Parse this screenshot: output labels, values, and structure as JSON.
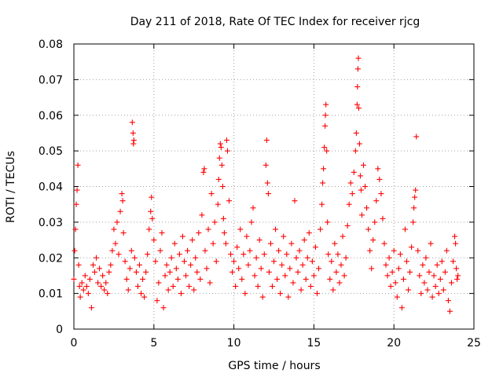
{
  "chart_data": {
    "type": "scatter",
    "title": "Day 211 of 2018, Rate Of TEC Index for receiver rjcg",
    "xlabel": "GPS time / hours",
    "ylabel": "ROTI / TECUs",
    "xlim": [
      0,
      25
    ],
    "ylim": [
      0,
      0.08
    ],
    "xticks": [
      0,
      5,
      10,
      15,
      20,
      25
    ],
    "xtick_labels": [
      "0",
      "5",
      "10",
      "15",
      "20",
      "25"
    ],
    "yticks": [
      0,
      0.01,
      0.02,
      0.03,
      0.04,
      0.05,
      0.06,
      0.07,
      0.08
    ],
    "ytick_labels": [
      "0",
      "0.01",
      "0.02",
      "0.03",
      "0.04",
      "0.05",
      "0.06",
      "0.07",
      "0.08"
    ],
    "grid": true,
    "marker": "+",
    "color": "#ff0000",
    "series": [
      {
        "name": "ROTI",
        "points": [
          [
            0.0,
            0.014
          ],
          [
            0.05,
            0.022
          ],
          [
            0.1,
            0.028
          ],
          [
            0.15,
            0.035
          ],
          [
            0.2,
            0.039
          ],
          [
            0.25,
            0.046
          ],
          [
            0.3,
            0.018
          ],
          [
            0.35,
            0.012
          ],
          [
            0.4,
            0.009
          ],
          [
            0.5,
            0.013
          ],
          [
            0.6,
            0.011
          ],
          [
            0.7,
            0.015
          ],
          [
            0.8,
            0.012
          ],
          [
            0.9,
            0.01
          ],
          [
            1.0,
            0.014
          ],
          [
            1.1,
            0.006
          ],
          [
            1.2,
            0.018
          ],
          [
            1.3,
            0.016
          ],
          [
            1.4,
            0.02
          ],
          [
            1.5,
            0.013
          ],
          [
            1.6,
            0.017
          ],
          [
            1.7,
            0.012
          ],
          [
            1.8,
            0.015
          ],
          [
            1.9,
            0.011
          ],
          [
            2.0,
            0.013
          ],
          [
            2.1,
            0.01
          ],
          [
            2.2,
            0.016
          ],
          [
            2.3,
            0.018
          ],
          [
            2.4,
            0.022
          ],
          [
            2.5,
            0.028
          ],
          [
            2.6,
            0.024
          ],
          [
            2.7,
            0.03
          ],
          [
            2.8,
            0.021
          ],
          [
            2.9,
            0.033
          ],
          [
            3.0,
            0.038
          ],
          [
            3.05,
            0.036
          ],
          [
            3.1,
            0.027
          ],
          [
            3.2,
            0.019
          ],
          [
            3.3,
            0.014
          ],
          [
            3.4,
            0.011
          ],
          [
            3.5,
            0.017
          ],
          [
            3.6,
            0.022
          ],
          [
            3.65,
            0.058
          ],
          [
            3.7,
            0.055
          ],
          [
            3.72,
            0.052
          ],
          [
            3.75,
            0.053
          ],
          [
            3.8,
            0.02
          ],
          [
            3.9,
            0.016
          ],
          [
            4.0,
            0.012
          ],
          [
            4.1,
            0.018
          ],
          [
            4.2,
            0.01
          ],
          [
            4.3,
            0.014
          ],
          [
            4.4,
            0.009
          ],
          [
            4.5,
            0.016
          ],
          [
            4.6,
            0.021
          ],
          [
            4.7,
            0.028
          ],
          [
            4.8,
            0.033
          ],
          [
            4.85,
            0.037
          ],
          [
            4.9,
            0.031
          ],
          [
            5.0,
            0.025
          ],
          [
            5.1,
            0.019
          ],
          [
            5.2,
            0.008
          ],
          [
            5.3,
            0.013
          ],
          [
            5.4,
            0.022
          ],
          [
            5.5,
            0.027
          ],
          [
            5.6,
            0.006
          ],
          [
            5.7,
            0.015
          ],
          [
            5.8,
            0.018
          ],
          [
            5.9,
            0.011
          ],
          [
            6.0,
            0.016
          ],
          [
            6.1,
            0.02
          ],
          [
            6.2,
            0.012
          ],
          [
            6.3,
            0.024
          ],
          [
            6.4,
            0.017
          ],
          [
            6.5,
            0.014
          ],
          [
            6.6,
            0.021
          ],
          [
            6.7,
            0.01
          ],
          [
            6.8,
            0.026
          ],
          [
            6.9,
            0.019
          ],
          [
            7.0,
            0.015
          ],
          [
            7.1,
            0.022
          ],
          [
            7.2,
            0.012
          ],
          [
            7.3,
            0.018
          ],
          [
            7.4,
            0.025
          ],
          [
            7.5,
            0.011
          ],
          [
            7.6,
            0.02
          ],
          [
            7.7,
            0.016
          ],
          [
            7.8,
            0.027
          ],
          [
            7.9,
            0.014
          ],
          [
            8.0,
            0.032
          ],
          [
            8.1,
            0.044
          ],
          [
            8.15,
            0.045
          ],
          [
            8.2,
            0.022
          ],
          [
            8.3,
            0.017
          ],
          [
            8.4,
            0.028
          ],
          [
            8.5,
            0.013
          ],
          [
            8.6,
            0.038
          ],
          [
            8.7,
            0.024
          ],
          [
            8.8,
            0.03
          ],
          [
            8.9,
            0.019
          ],
          [
            9.0,
            0.035
          ],
          [
            9.05,
            0.042
          ],
          [
            9.1,
            0.048
          ],
          [
            9.15,
            0.052
          ],
          [
            9.2,
            0.051
          ],
          [
            9.25,
            0.046
          ],
          [
            9.3,
            0.04
          ],
          [
            9.35,
            0.031
          ],
          [
            9.4,
            0.027
          ],
          [
            9.5,
            0.024
          ],
          [
            9.55,
            0.053
          ],
          [
            9.6,
            0.05
          ],
          [
            9.7,
            0.036
          ],
          [
            9.8,
            0.021
          ],
          [
            9.9,
            0.016
          ],
          [
            10.0,
            0.019
          ],
          [
            10.1,
            0.012
          ],
          [
            10.2,
            0.023
          ],
          [
            10.3,
            0.017
          ],
          [
            10.4,
            0.028
          ],
          [
            10.5,
            0.014
          ],
          [
            10.6,
            0.021
          ],
          [
            10.7,
            0.01
          ],
          [
            10.8,
            0.026
          ],
          [
            10.9,
            0.018
          ],
          [
            11.0,
            0.022
          ],
          [
            11.1,
            0.03
          ],
          [
            11.2,
            0.034
          ],
          [
            11.3,
            0.015
          ],
          [
            11.4,
            0.02
          ],
          [
            11.5,
            0.012
          ],
          [
            11.6,
            0.025
          ],
          [
            11.7,
            0.017
          ],
          [
            11.8,
            0.009
          ],
          [
            11.9,
            0.021
          ],
          [
            12.0,
            0.046
          ],
          [
            12.05,
            0.053
          ],
          [
            12.1,
            0.041
          ],
          [
            12.15,
            0.038
          ],
          [
            12.2,
            0.016
          ],
          [
            12.3,
            0.024
          ],
          [
            12.4,
            0.012
          ],
          [
            12.5,
            0.019
          ],
          [
            12.6,
            0.028
          ],
          [
            12.7,
            0.014
          ],
          [
            12.8,
            0.022
          ],
          [
            12.9,
            0.01
          ],
          [
            13.0,
            0.018
          ],
          [
            13.1,
            0.026
          ],
          [
            13.2,
            0.015
          ],
          [
            13.3,
            0.021
          ],
          [
            13.4,
            0.009
          ],
          [
            13.5,
            0.017
          ],
          [
            13.6,
            0.024
          ],
          [
            13.7,
            0.013
          ],
          [
            13.8,
            0.036
          ],
          [
            13.9,
            0.02
          ],
          [
            14.0,
            0.016
          ],
          [
            14.1,
            0.022
          ],
          [
            14.2,
            0.011
          ],
          [
            14.3,
            0.018
          ],
          [
            14.4,
            0.025
          ],
          [
            14.5,
            0.014
          ],
          [
            14.6,
            0.02
          ],
          [
            14.7,
            0.027
          ],
          [
            14.8,
            0.012
          ],
          [
            14.9,
            0.019
          ],
          [
            15.0,
            0.015
          ],
          [
            15.1,
            0.023
          ],
          [
            15.2,
            0.01
          ],
          [
            15.3,
            0.017
          ],
          [
            15.4,
            0.028
          ],
          [
            15.5,
            0.035
          ],
          [
            15.55,
            0.041
          ],
          [
            15.6,
            0.045
          ],
          [
            15.65,
            0.051
          ],
          [
            15.7,
            0.057
          ],
          [
            15.72,
            0.06
          ],
          [
            15.75,
            0.063
          ],
          [
            15.8,
            0.05
          ],
          [
            15.85,
            0.03
          ],
          [
            15.9,
            0.021
          ],
          [
            16.0,
            0.014
          ],
          [
            16.1,
            0.019
          ],
          [
            16.2,
            0.011
          ],
          [
            16.3,
            0.024
          ],
          [
            16.4,
            0.016
          ],
          [
            16.5,
            0.021
          ],
          [
            16.6,
            0.013
          ],
          [
            16.7,
            0.018
          ],
          [
            16.8,
            0.026
          ],
          [
            16.9,
            0.015
          ],
          [
            17.0,
            0.02
          ],
          [
            17.1,
            0.029
          ],
          [
            17.2,
            0.035
          ],
          [
            17.3,
            0.041
          ],
          [
            17.4,
            0.038
          ],
          [
            17.5,
            0.044
          ],
          [
            17.6,
            0.05
          ],
          [
            17.65,
            0.055
          ],
          [
            17.7,
            0.063
          ],
          [
            17.72,
            0.068
          ],
          [
            17.75,
            0.073
          ],
          [
            17.78,
            0.076
          ],
          [
            17.8,
            0.062
          ],
          [
            17.85,
            0.052
          ],
          [
            17.9,
            0.043
          ],
          [
            17.95,
            0.039
          ],
          [
            18.0,
            0.032
          ],
          [
            18.1,
            0.046
          ],
          [
            18.2,
            0.04
          ],
          [
            18.3,
            0.034
          ],
          [
            18.4,
            0.028
          ],
          [
            18.5,
            0.022
          ],
          [
            18.6,
            0.017
          ],
          [
            18.7,
            0.025
          ],
          [
            18.8,
            0.03
          ],
          [
            18.9,
            0.036
          ],
          [
            19.0,
            0.045
          ],
          [
            19.1,
            0.042
          ],
          [
            19.2,
            0.038
          ],
          [
            19.3,
            0.031
          ],
          [
            19.4,
            0.024
          ],
          [
            19.5,
            0.018
          ],
          [
            19.6,
            0.015
          ],
          [
            19.7,
            0.02
          ],
          [
            19.8,
            0.012
          ],
          [
            19.9,
            0.016
          ],
          [
            20.0,
            0.022
          ],
          [
            20.1,
            0.013
          ],
          [
            20.2,
            0.009
          ],
          [
            20.3,
            0.017
          ],
          [
            20.4,
            0.021
          ],
          [
            20.5,
            0.006
          ],
          [
            20.6,
            0.014
          ],
          [
            20.7,
            0.028
          ],
          [
            20.8,
            0.019
          ],
          [
            20.9,
            0.011
          ],
          [
            21.0,
            0.016
          ],
          [
            21.1,
            0.023
          ],
          [
            21.2,
            0.03
          ],
          [
            21.25,
            0.034
          ],
          [
            21.3,
            0.037
          ],
          [
            21.35,
            0.039
          ],
          [
            21.4,
            0.054
          ],
          [
            21.5,
            0.022
          ],
          [
            21.6,
            0.015
          ],
          [
            21.7,
            0.01
          ],
          [
            21.8,
            0.018
          ],
          [
            21.9,
            0.013
          ],
          [
            22.0,
            0.02
          ],
          [
            22.1,
            0.011
          ],
          [
            22.2,
            0.016
          ],
          [
            22.3,
            0.024
          ],
          [
            22.4,
            0.009
          ],
          [
            22.5,
            0.015
          ],
          [
            22.6,
            0.012
          ],
          [
            22.7,
            0.018
          ],
          [
            22.8,
            0.01
          ],
          [
            22.9,
            0.014
          ],
          [
            23.0,
            0.019
          ],
          [
            23.1,
            0.011
          ],
          [
            23.2,
            0.016
          ],
          [
            23.3,
            0.022
          ],
          [
            23.4,
            0.008
          ],
          [
            23.5,
            0.005
          ],
          [
            23.6,
            0.013
          ],
          [
            23.7,
            0.019
          ],
          [
            23.8,
            0.026
          ],
          [
            23.85,
            0.024
          ],
          [
            23.9,
            0.017
          ],
          [
            23.95,
            0.014
          ],
          [
            24.0,
            0.015
          ]
        ]
      }
    ]
  }
}
